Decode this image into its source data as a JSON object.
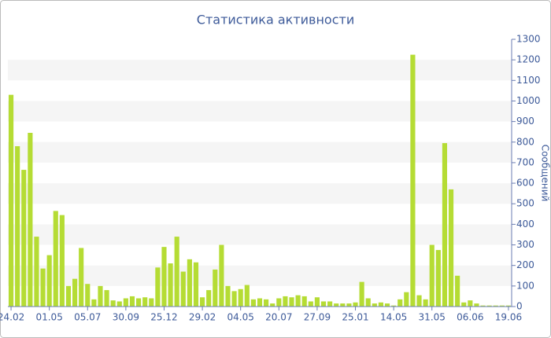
{
  "chart_data": {
    "type": "bar",
    "title": "Статистика активности",
    "y_label": "Сообщений",
    "categories": [
      "24.02",
      null,
      null,
      null,
      null,
      null,
      "01.05",
      null,
      null,
      null,
      null,
      null,
      "05.07",
      null,
      null,
      null,
      null,
      null,
      "30.09",
      null,
      null,
      null,
      null,
      null,
      "25.12",
      null,
      null,
      null,
      null,
      null,
      "29.02",
      null,
      null,
      null,
      null,
      null,
      "04.05",
      null,
      null,
      null,
      null,
      null,
      "20.07",
      null,
      null,
      null,
      null,
      null,
      "27.09",
      null,
      null,
      null,
      null,
      null,
      "25.01",
      null,
      null,
      null,
      null,
      null,
      "14.05",
      null,
      null,
      null,
      null,
      null,
      "31.05",
      null,
      null,
      null,
      null,
      null,
      "06.06",
      null,
      null,
      null,
      null,
      null,
      "19.06"
    ],
    "values": [
      1030,
      780,
      665,
      845,
      340,
      185,
      250,
      465,
      445,
      100,
      135,
      285,
      110,
      35,
      100,
      80,
      30,
      25,
      40,
      50,
      40,
      45,
      40,
      190,
      290,
      210,
      340,
      170,
      230,
      215,
      45,
      80,
      180,
      300,
      100,
      75,
      85,
      105,
      35,
      40,
      35,
      15,
      40,
      50,
      45,
      55,
      50,
      25,
      45,
      25,
      25,
      15,
      15,
      15,
      20,
      120,
      40,
      15,
      20,
      15,
      5,
      35,
      70,
      1225,
      55,
      35,
      300,
      275,
      795,
      570,
      150,
      20,
      30,
      15,
      5,
      5,
      5,
      5,
      5
    ],
    "color": "#b5dc34",
    "ylim": [
      0,
      1300
    ],
    "yticks": [
      0,
      100,
      200,
      300,
      400,
      500,
      600,
      700,
      800,
      900,
      1000,
      1100,
      1200,
      1300
    ],
    "y_axis_side": "right",
    "grid_bands": true
  }
}
